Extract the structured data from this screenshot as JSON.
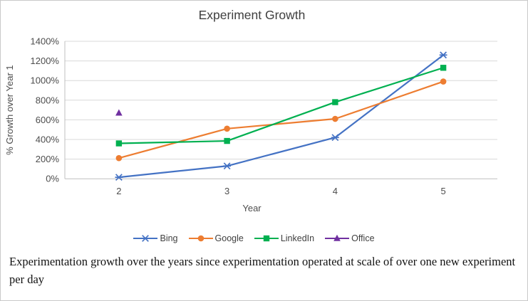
{
  "figure": {
    "caption": "Experimentation growth over the years since experimentation operated at scale of over one new experiment per day"
  },
  "chart_data": {
    "type": "line",
    "title": "Experiment Growth",
    "xlabel": "Year",
    "ylabel": "% Growth over Year 1",
    "x": [
      2,
      3,
      4,
      5
    ],
    "x_ticks": [
      "2",
      "3",
      "4",
      "5"
    ],
    "y_ticks": [
      "0%",
      "200%",
      "400%",
      "600%",
      "800%",
      "1000%",
      "1200%",
      "1400%"
    ],
    "y_tick_step": 200,
    "ylim": [
      0,
      1400
    ],
    "xlim": [
      1.5,
      5.5
    ],
    "grid": "horizontal",
    "legend_position": "bottom",
    "series": [
      {
        "name": "Bing",
        "color": "#4472C4",
        "marker": "x",
        "values": [
          15,
          130,
          420,
          1260
        ]
      },
      {
        "name": "Google",
        "color": "#ED7D31",
        "marker": "circle",
        "values": [
          210,
          510,
          610,
          990
        ]
      },
      {
        "name": "LinkedIn",
        "color": "#00B050",
        "marker": "square",
        "values": [
          360,
          385,
          780,
          1130
        ]
      },
      {
        "name": "Office",
        "color": "#7030A0",
        "marker": "triangle",
        "values": [
          670,
          null,
          null,
          null
        ]
      }
    ]
  }
}
